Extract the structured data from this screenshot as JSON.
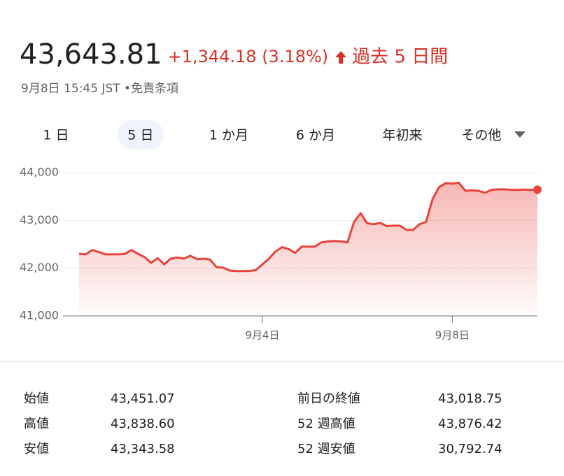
{
  "header": {
    "price": "43,643.81",
    "change": "+1,344.18 (3.18%)",
    "period": "過去 5 日間",
    "timestamp": "9月8日 15:45 JST",
    "separator": "•",
    "disclaimer": "免責条項"
  },
  "tabs": [
    "1 日",
    "5 日",
    "1 か月",
    "6 か月",
    "年初来",
    "その他"
  ],
  "chart_data": {
    "type": "line",
    "color": "#e8433a",
    "grid": true,
    "categories": [
      null,
      null,
      null,
      null,
      null,
      null,
      null,
      null,
      null,
      null,
      null,
      null,
      null,
      null,
      null,
      null,
      null,
      null,
      null,
      null,
      null,
      null,
      null,
      null,
      null,
      null,
      null,
      null,
      "9月4日",
      null,
      null,
      null,
      null,
      null,
      null,
      null,
      null,
      null,
      null,
      null,
      null,
      null,
      null,
      null,
      null,
      null,
      null,
      null,
      null,
      null,
      null,
      null,
      null,
      null,
      null,
      null,
      null,
      "9月8日",
      null,
      null,
      null,
      null,
      null,
      null,
      null,
      null,
      null,
      null,
      null,
      null,
      null
    ],
    "values": [
      42300,
      42290,
      42380,
      42340,
      42290,
      42290,
      42290,
      42300,
      42380,
      42300,
      42230,
      42110,
      42210,
      42080,
      42200,
      42220,
      42200,
      42260,
      42190,
      42200,
      42180,
      42020,
      42010,
      41950,
      41940,
      41940,
      41940,
      41960,
      42080,
      42200,
      42350,
      42440,
      42400,
      42320,
      42450,
      42450,
      42450,
      42540,
      42560,
      42570,
      42560,
      42540,
      42970,
      43150,
      42940,
      42920,
      42950,
      42880,
      42890,
      42890,
      42800,
      42800,
      42920,
      42970,
      43450,
      43700,
      43780,
      43770,
      43790,
      43620,
      43630,
      43620,
      43580,
      43640,
      43650,
      43650,
      43640,
      43640,
      43645,
      43640,
      43643.81
    ],
    "ylim": [
      41000,
      44000
    ],
    "yticks": [
      {
        "value": 41000,
        "label": "41,000"
      },
      {
        "value": 42000,
        "label": "42,000"
      },
      {
        "value": 43000,
        "label": "43,000"
      },
      {
        "value": 44000,
        "label": "44,000"
      }
    ]
  },
  "stats": [
    [
      "始値",
      "43,451.07",
      "前日の終値",
      "43,018.75"
    ],
    [
      "高値",
      "43,838.60",
      "52 週高値",
      "43,876.42"
    ],
    [
      "安値",
      "43,343.58",
      "52 週安値",
      "30,792.74"
    ]
  ]
}
